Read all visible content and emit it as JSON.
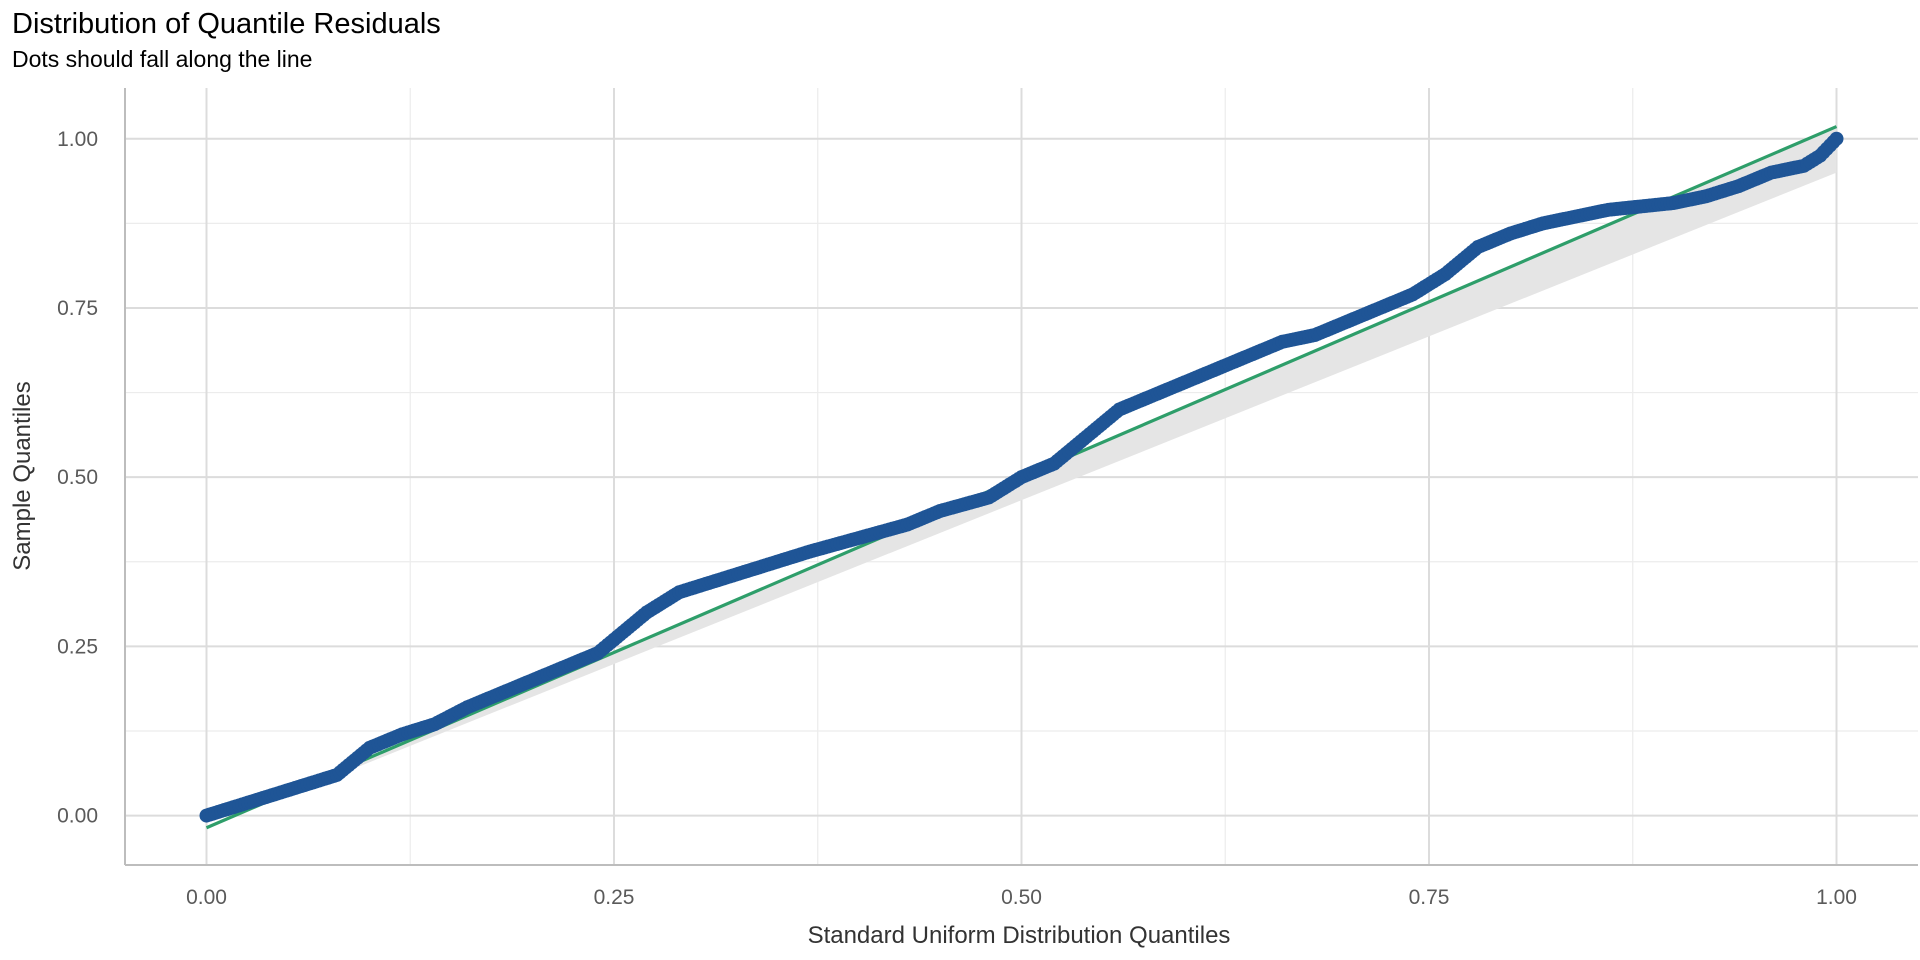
{
  "chart_data": {
    "type": "scatter",
    "title": "Distribution of Quantile Residuals",
    "subtitle": "Dots should fall along the line",
    "xlabel": "Standard Uniform Distribution Quantiles",
    "ylabel": "Sample Quantiles",
    "xlim": [
      -0.05,
      1.05
    ],
    "ylim": [
      -0.073,
      1.075
    ],
    "x_ticks": [
      "0.00",
      "0.25",
      "0.50",
      "0.75",
      "1.00"
    ],
    "y_ticks": [
      "0.00",
      "0.25",
      "0.50",
      "0.75",
      "1.00"
    ],
    "grid": true,
    "colors": {
      "points": "#1f5596",
      "reference_line": "#2e9e6a",
      "band": "#e5e5e5"
    },
    "reference_line": {
      "x": [
        0,
        1
      ],
      "y": [
        -0.018,
        1.018
      ]
    },
    "confidence_band": {
      "x": [
        0,
        1
      ],
      "lower": [
        -0.018,
        0.95
      ],
      "upper": [
        -0.018,
        1.018
      ]
    },
    "series": [
      {
        "x": [
          0.0,
          0.02,
          0.04,
          0.06,
          0.08,
          0.1,
          0.12,
          0.14,
          0.16,
          0.18,
          0.2,
          0.22,
          0.24,
          0.25,
          0.27,
          0.29,
          0.31,
          0.33,
          0.35,
          0.37,
          0.4,
          0.43,
          0.45,
          0.48,
          0.5,
          0.52,
          0.54,
          0.56,
          0.58,
          0.6,
          0.62,
          0.64,
          0.66,
          0.68,
          0.7,
          0.72,
          0.74,
          0.76,
          0.78,
          0.8,
          0.82,
          0.84,
          0.86,
          0.88,
          0.9,
          0.92,
          0.94,
          0.96,
          0.98,
          0.99,
          1.0
        ],
        "y": [
          0.0,
          0.015,
          0.03,
          0.045,
          0.06,
          0.1,
          0.12,
          0.135,
          0.16,
          0.18,
          0.2,
          0.22,
          0.24,
          0.26,
          0.3,
          0.33,
          0.345,
          0.36,
          0.375,
          0.39,
          0.41,
          0.43,
          0.45,
          0.47,
          0.5,
          0.52,
          0.56,
          0.6,
          0.62,
          0.64,
          0.66,
          0.68,
          0.7,
          0.71,
          0.73,
          0.75,
          0.77,
          0.8,
          0.84,
          0.86,
          0.875,
          0.885,
          0.895,
          0.9,
          0.905,
          0.915,
          0.93,
          0.95,
          0.96,
          0.975,
          1.0
        ]
      }
    ]
  }
}
